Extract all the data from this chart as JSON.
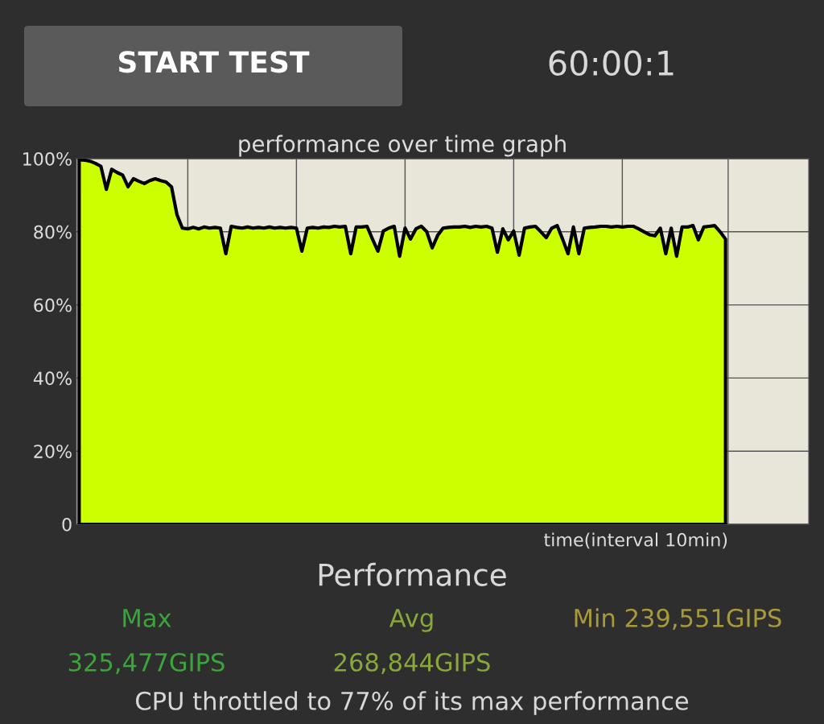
{
  "chart_data": {
    "type": "area",
    "title": "performance over time graph",
    "xlabel": "time(interval 10min)",
    "annotations": [
      "START TEST",
      "60:00:1",
      "Performance",
      "Max",
      "325,477GIPS",
      "Avg",
      "268,844GIPS",
      "Min 239,551GIPS",
      "CPU throttled to 77% of its max performance"
    ],
    "categories": [
      null,
      null,
      null,
      null,
      null,
      null,
      null,
      null,
      null,
      null,
      null,
      null,
      null,
      null,
      null,
      null,
      null,
      null,
      null,
      null,
      null,
      null,
      null,
      null,
      null,
      null,
      null,
      null,
      null,
      null,
      null,
      null,
      null,
      null,
      null,
      null,
      null,
      null,
      null,
      null,
      null,
      null,
      null,
      null,
      null,
      null,
      null,
      null,
      null,
      null,
      null,
      null,
      null,
      null,
      null,
      null,
      null,
      null,
      null,
      null,
      null,
      null,
      null,
      null,
      null,
      null,
      null,
      null,
      null,
      null,
      null,
      null,
      null,
      null,
      null,
      null,
      null,
      null,
      null,
      null,
      null,
      null,
      null,
      null,
      null,
      null,
      null,
      null,
      null,
      null,
      null,
      null,
      null,
      null,
      null,
      null,
      null,
      null,
      null,
      null,
      null,
      null,
      null,
      null,
      null,
      null,
      null,
      null,
      null,
      null,
      null,
      null,
      null,
      null,
      null,
      null,
      null,
      null,
      null,
      null
    ],
    "ylim": [
      0,
      100
    ],
    "yticks": [
      {
        "value": 0,
        "label": "0"
      },
      {
        "value": 20,
        "label": "20%"
      },
      {
        "value": 40,
        "label": "40%"
      },
      {
        "value": 60,
        "label": "60%"
      },
      {
        "value": 80,
        "label": "80%"
      },
      {
        "value": 100,
        "label": "100%"
      }
    ],
    "grid": true,
    "series": [
      {
        "color": "#ccff00",
        "values": [
          99.8,
          99.6,
          99.3,
          98.7,
          97.9,
          91.6,
          97.1,
          96.2,
          95.5,
          92.3,
          94.5,
          93.8,
          93.2,
          94.0,
          94.5,
          94.0,
          93.6,
          92.3,
          84.7,
          81.0,
          80.8,
          81.2,
          80.8,
          81.3,
          81.0,
          81.2,
          81.0,
          74.0,
          81.5,
          81.2,
          81.0,
          81.3,
          81.0,
          81.2,
          81.0,
          81.3,
          81.0,
          81.2,
          81.0,
          81.2,
          81.0,
          74.7,
          81.0,
          81.2,
          81.0,
          81.3,
          81.2,
          81.5,
          81.3,
          81.5,
          74.0,
          81.3,
          81.3,
          81.5,
          78.0,
          74.7,
          80.2,
          81.0,
          81.5,
          73.3,
          81.0,
          78.0,
          80.8,
          81.5,
          80.0,
          75.6,
          79.0,
          81.0,
          81.2,
          81.3,
          81.3,
          81.5,
          81.2,
          81.5,
          81.3,
          81.5,
          81.0,
          74.4,
          80.8,
          77.8,
          80.2,
          73.6,
          81.0,
          81.3,
          81.5,
          80.0,
          78.4,
          81.0,
          81.7,
          78.0,
          74.0,
          81.3,
          74.0,
          81.0,
          81.2,
          81.3,
          81.5,
          81.5,
          81.3,
          81.5,
          81.3,
          81.5,
          81.5,
          80.8,
          80.0,
          79.2,
          78.9,
          81.0,
          74.0,
          81.0,
          73.3,
          81.3,
          81.3,
          81.7,
          77.8,
          81.3,
          81.5,
          81.7,
          80.0,
          78.0
        ]
      }
    ]
  }
}
